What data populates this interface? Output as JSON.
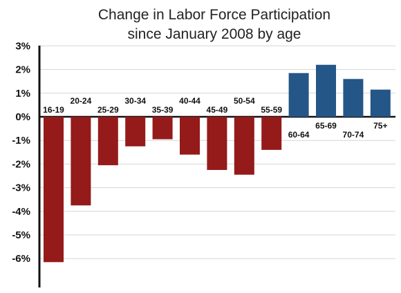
{
  "chart_data": {
    "type": "bar",
    "title": "Change in Labor Force Participation",
    "subtitle": "since January 2008 by age",
    "xlabel": "",
    "ylabel": "",
    "ylim": [
      -7,
      3
    ],
    "yticks": [
      {
        "value": 3,
        "label": "3%"
      },
      {
        "value": 2,
        "label": "2%"
      },
      {
        "value": 1,
        "label": "1%"
      },
      {
        "value": 0,
        "label": "0%"
      },
      {
        "value": -1,
        "label": "-1%"
      },
      {
        "value": -2,
        "label": "-2%"
      },
      {
        "value": -3,
        "label": "-3%"
      },
      {
        "value": -4,
        "label": "-4%"
      },
      {
        "value": -5,
        "label": "-5%"
      },
      {
        "value": -6,
        "label": "-6%"
      }
    ],
    "grid": true,
    "categories": [
      "16-19",
      "20-24",
      "25-29",
      "30-34",
      "35-39",
      "40-44",
      "45-49",
      "50-54",
      "55-59",
      "60-64",
      "65-69",
      "70-74",
      "75+"
    ],
    "values": [
      -6.15,
      -3.75,
      -2.05,
      -1.25,
      -0.95,
      -1.6,
      -2.25,
      -2.45,
      -1.4,
      1.85,
      2.2,
      1.6,
      1.15
    ],
    "colors": {
      "negative": "#951a1a",
      "positive": "#245688"
    }
  }
}
